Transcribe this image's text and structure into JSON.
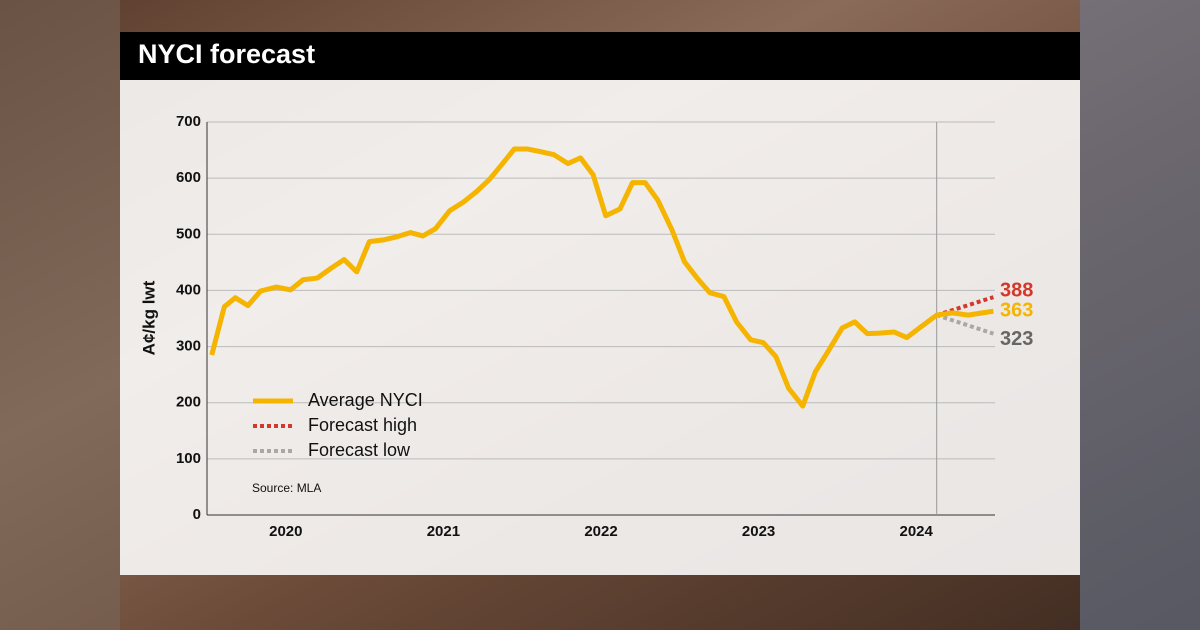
{
  "chart_data": {
    "type": "line",
    "title": "NYCI forecast",
    "y_label": "A¢/kg lwt",
    "source": "Source: MLA",
    "xlim": [
      2020,
      2025
    ],
    "xticks": [
      {
        "value": 2020.5,
        "label": "2020"
      },
      {
        "value": 2021.5,
        "label": "2021"
      },
      {
        "value": 2022.5,
        "label": "2022"
      },
      {
        "value": 2023.5,
        "label": "2023"
      },
      {
        "value": 2024.5,
        "label": "2024"
      }
    ],
    "ylim": [
      0,
      700
    ],
    "yticks": [
      0,
      100,
      200,
      300,
      400,
      500,
      600,
      700
    ],
    "grid": true,
    "series": [
      {
        "name": "Average NYCI",
        "color": "#f5b400",
        "dash": false,
        "x": [
          2020.03,
          2020.11,
          2020.18,
          2020.26,
          2020.34,
          2020.44,
          2020.53,
          2020.61,
          2020.7,
          2020.79,
          2020.87,
          2020.95,
          2021.03,
          2021.12,
          2021.21,
          2021.29,
          2021.37,
          2021.45,
          2021.54,
          2021.63,
          2021.71,
          2021.79,
          2021.87,
          2021.95,
          2022.03,
          2022.12,
          2022.2,
          2022.29,
          2022.37,
          2022.45,
          2022.53,
          2022.62,
          2022.7,
          2022.78,
          2022.86,
          2022.95,
          2023.03,
          2023.11,
          2023.19,
          2023.28,
          2023.36,
          2023.45,
          2023.53,
          2023.61,
          2023.69,
          2023.78,
          2023.86,
          2023.94,
          2024.03,
          2024.11,
          2024.19,
          2024.27,
          2024.36,
          2024.44,
          2024.52,
          2024.63,
          2024.73,
          2024.83,
          2024.92,
          2024.99
        ],
        "values": [
          285,
          371,
          387,
          373,
          399,
          406,
          401,
          419,
          422,
          440,
          455,
          433,
          487,
          490,
          496,
          503,
          497,
          510,
          542,
          558,
          576,
          597,
          624,
          652,
          652,
          647,
          642,
          626,
          636,
          606,
          533,
          545,
          592,
          592,
          561,
          508,
          451,
          422,
          396,
          389,
          344,
          312,
          307,
          282,
          226,
          194,
          255,
          291,
          333,
          344,
          323,
          324,
          326,
          316,
          333,
          356,
          360,
          356,
          360,
          363
        ]
      },
      {
        "name": "Forecast high",
        "color": "#d2382b",
        "dash": true,
        "x": [
          2024.63,
          2024.99
        ],
        "values": [
          356,
          388
        ]
      },
      {
        "name": "Forecast low",
        "color": "#a8a8a8",
        "dash": true,
        "x": [
          2024.63,
          2024.99
        ],
        "values": [
          356,
          323
        ]
      }
    ],
    "end_label_colors": [
      "#f5b400",
      "#d2382b",
      "#666666"
    ]
  }
}
